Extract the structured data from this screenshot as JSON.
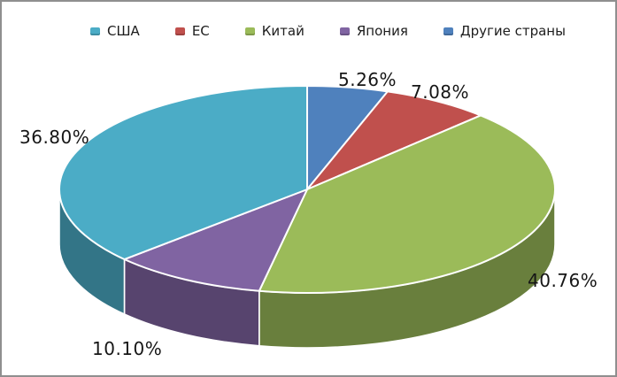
{
  "chart_data": {
    "type": "pie",
    "style": "3d",
    "title": "",
    "legend_position": "top",
    "background_color": "#ffffff",
    "label_color": "#161616",
    "legend_text_color": "#1c1c1c",
    "slices": [
      {
        "name": "США",
        "value": 36.8,
        "label": "36.80%",
        "color": "#4BACC6"
      },
      {
        "name": "ЕС",
        "value": 7.08,
        "label": "7.08%",
        "color": "#C0504D"
      },
      {
        "name": "Китай",
        "value": 40.76,
        "label": "40.76%",
        "color": "#9BBB59"
      },
      {
        "name": "Япония",
        "value": 10.1,
        "label": "10.10%",
        "color": "#8064A2"
      },
      {
        "name": "Другие страны",
        "value": 5.26,
        "label": "5.26%",
        "color": "#4F81BD"
      }
    ],
    "pie_order_clockwise_from_top": [
      4,
      1,
      2,
      3,
      0
    ]
  }
}
